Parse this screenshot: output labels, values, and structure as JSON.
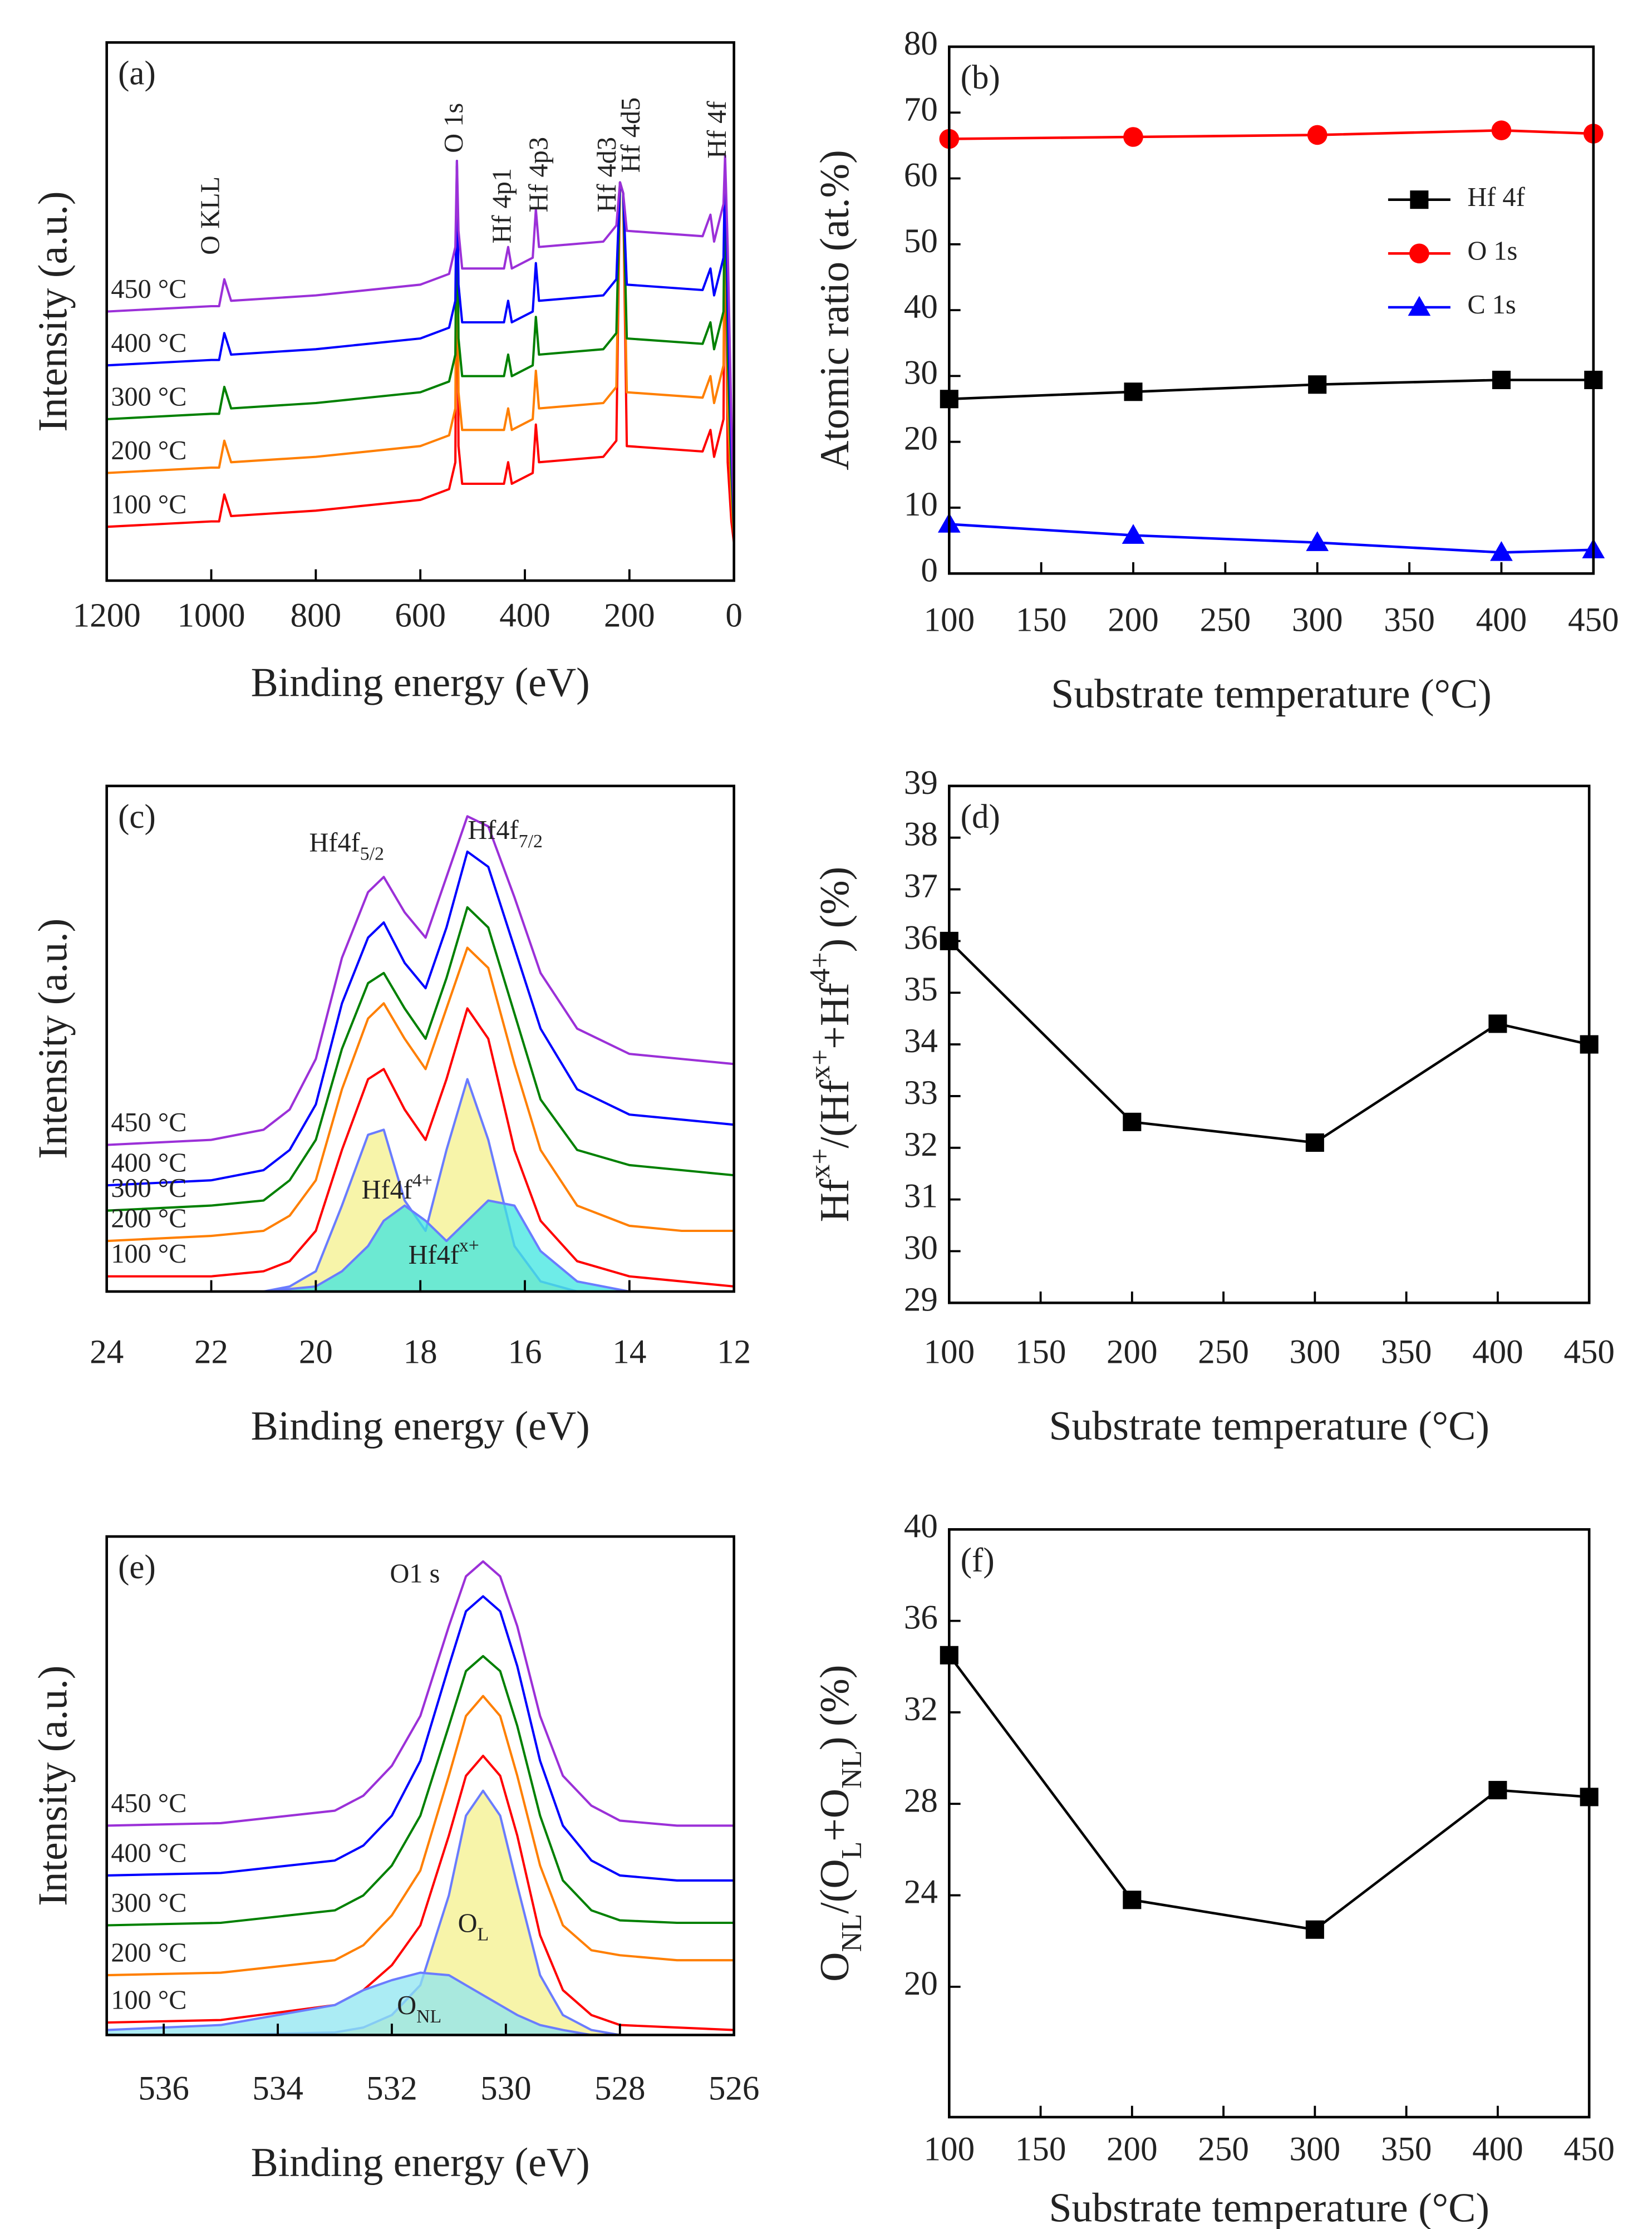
{
  "chart_data": [
    {
      "type": "line",
      "title": "(a)",
      "xlabel": "Binding energy (eV)",
      "ylabel": "Intensity (a.u.)",
      "x": [
        1200,
        1000,
        985,
        975,
        962,
        800,
        600,
        545,
        533,
        530,
        527,
        520,
        440,
        432,
        425,
        385,
        379,
        373,
        250,
        225,
        218,
        212,
        205,
        60,
        45,
        38,
        20,
        17,
        12,
        5,
        0
      ],
      "xlim": [
        1200,
        0
      ],
      "xticks": [
        1200,
        1000,
        800,
        600,
        400,
        200,
        0
      ],
      "ylim": [
        0,
        100
      ],
      "series": [
        {
          "name": "100 °C",
          "color": "#ff0000",
          "values": [
            10,
            11,
            11,
            16,
            12,
            13,
            15,
            17,
            22,
            77,
            25,
            18,
            18,
            22,
            18,
            20,
            29,
            22,
            23,
            26,
            74,
            72,
            25,
            24,
            28,
            23,
            30,
            76,
            22,
            11,
            7
          ]
        },
        {
          "name": "200 °C",
          "color": "#ff7f00",
          "values": [
            20,
            21,
            21,
            26,
            22,
            23,
            25,
            27,
            32,
            77,
            35,
            28,
            28,
            32,
            28,
            30,
            39,
            32,
            33,
            36,
            74,
            72,
            35,
            34,
            38,
            33,
            40,
            77,
            32,
            16,
            8
          ]
        },
        {
          "name": "300 °C",
          "color": "#008000",
          "values": [
            30,
            31,
            31,
            36,
            32,
            33,
            35,
            37,
            42,
            77,
            45,
            38,
            38,
            42,
            38,
            40,
            49,
            42,
            43,
            46,
            74,
            72,
            45,
            44,
            48,
            43,
            50,
            78,
            42,
            20,
            9
          ]
        },
        {
          "name": "400 °C",
          "color": "#0000ff",
          "values": [
            40,
            41,
            41,
            46,
            42,
            43,
            45,
            47,
            52,
            78,
            55,
            48,
            48,
            52,
            48,
            50,
            59,
            52,
            53,
            56,
            74,
            72,
            55,
            54,
            58,
            53,
            60,
            78,
            52,
            25,
            10
          ]
        },
        {
          "name": "450 °C",
          "color": "#9b30d8",
          "values": [
            50,
            51,
            51,
            56,
            52,
            53,
            55,
            57,
            62,
            78,
            65,
            58,
            58,
            62,
            58,
            60,
            69,
            62,
            63,
            66,
            74,
            72,
            65,
            64,
            68,
            63,
            70,
            79,
            62,
            30,
            11
          ]
        }
      ],
      "annotations": [
        {
          "parts": [
            "O KLL"
          ]
        },
        {
          "parts": [
            "O 1s"
          ]
        },
        {
          "parts": [
            "Hf 4p1"
          ]
        },
        {
          "parts": [
            "Hf 4p3"
          ]
        },
        {
          "parts": [
            "Hf 4d3"
          ]
        },
        {
          "parts": [
            "Hf 4d5"
          ]
        },
        {
          "parts": [
            "Hf 4f"
          ]
        }
      ]
    },
    {
      "type": "line",
      "title": "(b)",
      "xlabel": "Substrate temperature (°C)",
      "ylabel": "Atomic ratio (at.%)",
      "x": [
        100,
        200,
        300,
        400,
        450
      ],
      "xlim": [
        100,
        450
      ],
      "xticks": [
        100,
        150,
        200,
        250,
        300,
        350,
        400,
        450
      ],
      "ylim": [
        0,
        80
      ],
      "yticks": [
        0,
        10,
        20,
        30,
        40,
        50,
        60,
        70,
        80
      ],
      "legend": "upper right",
      "series": [
        {
          "name": "Hf 4f",
          "color": "#000000",
          "marker": "square",
          "values": [
            26.5,
            27.6,
            28.7,
            29.4,
            29.4
          ]
        },
        {
          "name": "O 1s",
          "color": "#ff0000",
          "marker": "circle",
          "values": [
            66,
            66.3,
            66.6,
            67.3,
            66.8
          ]
        },
        {
          "name": "C 1s",
          "color": "#0000ff",
          "marker": "triangle",
          "values": [
            7.5,
            5.8,
            4.7,
            3.2,
            3.6
          ]
        }
      ]
    },
    {
      "type": "line",
      "title": "(c)",
      "xlabel": "Binding energy (eV)",
      "ylabel": "Intensity (a.u.)",
      "x": [
        24,
        22,
        21,
        20.5,
        20,
        19.5,
        19,
        18.7,
        18.3,
        17.9,
        17.5,
        17.1,
        16.7,
        16.2,
        15.7,
        15,
        14,
        13,
        12
      ],
      "xlim": [
        24,
        12
      ],
      "xticks": [
        24,
        22,
        20,
        18,
        16,
        14,
        12
      ],
      "ylim": [
        0,
        100
      ],
      "series": [
        {
          "name": "100 °C",
          "color": "#ff0000",
          "values": [
            3,
            3,
            4,
            6,
            12,
            28,
            42,
            44,
            36,
            30,
            42,
            56,
            50,
            28,
            14,
            6,
            3,
            2,
            1
          ]
        },
        {
          "name": "200 °C",
          "color": "#ff7f00",
          "values": [
            10,
            11,
            12,
            15,
            22,
            40,
            54,
            57,
            50,
            44,
            56,
            68,
            64,
            45,
            28,
            17,
            13,
            12,
            12
          ]
        },
        {
          "name": "300 °C",
          "color": "#008000",
          "values": [
            16,
            17,
            18,
            22,
            30,
            48,
            61,
            63,
            56,
            50,
            62,
            76,
            72,
            55,
            38,
            28,
            25,
            24,
            23
          ]
        },
        {
          "name": "400 °C",
          "color": "#0000ff",
          "values": [
            21,
            22,
            24,
            28,
            37,
            57,
            70,
            73,
            65,
            60,
            72,
            87,
            84,
            68,
            52,
            40,
            35,
            34,
            33
          ]
        },
        {
          "name": "450 °C",
          "color": "#9b30d8",
          "values": [
            29,
            30,
            32,
            36,
            46,
            66,
            79,
            82,
            75,
            70,
            82,
            94,
            92,
            78,
            63,
            52,
            47,
            46,
            45
          ]
        },
        {
          "color": "#6a7cff",
          "fill": "#f4f08c",
          "values": [
            0,
            0,
            0,
            1,
            4,
            17,
            31,
            32,
            18,
            12,
            28,
            42,
            30,
            9,
            2,
            0,
            0,
            0,
            0
          ]
        },
        {
          "color": "#6a7cff",
          "fill": "#3ee6e0",
          "values": [
            0,
            0,
            0,
            0.5,
            1,
            4,
            9,
            14,
            17,
            14,
            10,
            14,
            18,
            17,
            8,
            2,
            0,
            0,
            0
          ]
        }
      ],
      "annotations": [
        {
          "parts": [
            "Hf4f",
            "5/2"
          ],
          "script": "sub"
        },
        {
          "parts": [
            "Hf4f",
            "7/2"
          ],
          "script": "sub"
        },
        {
          "parts": [
            "Hf4f",
            "4+"
          ],
          "script": "sup"
        },
        {
          "parts": [
            "Hf4f",
            "x+"
          ],
          "script": "sup"
        }
      ]
    },
    {
      "type": "line",
      "title": "(d)",
      "xlabel": "Substrate temperature (°C)",
      "ylabel": {
        "parts": [
          "Hf",
          "x+",
          "/(Hf",
          "x+",
          "+Hf",
          "4+",
          ") (%)"
        ],
        "script": "sup"
      },
      "x": [
        100,
        200,
        300,
        400,
        450
      ],
      "xlim": [
        100,
        450
      ],
      "xticks": [
        100,
        150,
        200,
        250,
        300,
        350,
        400,
        450
      ],
      "ylim": [
        29,
        39
      ],
      "yticks": [
        29,
        30,
        31,
        32,
        33,
        34,
        35,
        36,
        37,
        38,
        39
      ],
      "series": [
        {
          "color": "#000000",
          "marker": "square",
          "values": [
            36,
            32.5,
            32.1,
            34.4,
            34.0
          ]
        }
      ]
    },
    {
      "type": "line",
      "title": "(e)",
      "xlabel": "Binding energy (eV)",
      "ylabel": "Intensity (a.u.)",
      "x": [
        537,
        535,
        533,
        532.5,
        532,
        531.5,
        531,
        530.7,
        530.4,
        530.1,
        529.8,
        529.4,
        529,
        528.5,
        528,
        527,
        526
      ],
      "xlim": [
        537,
        526
      ],
      "xticks": [
        536,
        534,
        532,
        530,
        528,
        526
      ],
      "ylim": [
        0,
        100
      ],
      "series": [
        {
          "name": "100 °C",
          "color": "#ff0000",
          "values": [
            2.5,
            3,
            6,
            9,
            14,
            22,
            40,
            52,
            56,
            52,
            40,
            20,
            9,
            4,
            2,
            1.5,
            1
          ]
        },
        {
          "name": "200 °C",
          "color": "#ff7f00",
          "values": [
            12,
            12.5,
            15,
            18,
            24,
            33,
            52,
            64,
            68,
            64,
            52,
            34,
            22,
            17,
            16,
            15,
            15
          ]
        },
        {
          "name": "300 °C",
          "color": "#008000",
          "values": [
            22,
            22.5,
            25,
            28,
            34,
            44,
            62,
            73,
            76,
            73,
            62,
            44,
            31,
            25,
            23,
            22.5,
            22.5
          ]
        },
        {
          "name": "400 °C",
          "color": "#0000ff",
          "values": [
            32,
            32.5,
            35,
            38,
            44,
            55,
            74,
            85,
            88,
            85,
            74,
            55,
            42,
            35,
            32,
            31,
            31
          ]
        },
        {
          "name": "450 °C",
          "color": "#9b30d8",
          "values": [
            42,
            42.5,
            45,
            48,
            54,
            64,
            82,
            92,
            95,
            92,
            82,
            64,
            52,
            46,
            43,
            42,
            42
          ]
        },
        {
          "color": "#6a7cff",
          "fill": "#f4f08c",
          "values": [
            0,
            0,
            0.5,
            1.5,
            4,
            10,
            28,
            44,
            49,
            44,
            30,
            12,
            4,
            1,
            0,
            0,
            0
          ]
        },
        {
          "color": "#6a7cff",
          "fill": "#8fe6f0",
          "values": [
            1,
            2,
            6,
            9,
            11,
            12.5,
            12,
            10,
            8,
            6,
            4,
            2,
            1,
            0,
            0,
            0,
            0
          ]
        }
      ],
      "annotations": [
        {
          "parts": [
            "O1 s"
          ]
        },
        {
          "parts": [
            "O",
            "L"
          ],
          "script": "sub"
        },
        {
          "parts": [
            "O",
            "NL"
          ],
          "script": "sub"
        }
      ]
    },
    {
      "type": "line",
      "title": "(f)",
      "xlabel": "Substrate temperature (°C)",
      "ylabel": {
        "parts": [
          "O",
          "NL",
          "/(O",
          "L",
          "+O",
          "NL",
          ") (%)"
        ],
        "script": "sub"
      },
      "x": [
        100,
        200,
        300,
        400,
        450
      ],
      "xlim": [
        100,
        450
      ],
      "xticks": [
        100,
        150,
        200,
        250,
        300,
        350,
        400,
        450
      ],
      "ylim": [
        14.3,
        40
      ],
      "yticks": [
        20,
        24,
        28,
        32,
        36,
        40
      ],
      "series": [
        {
          "color": "#000000",
          "marker": "square",
          "values": [
            34.5,
            23.8,
            22.5,
            28.6,
            28.3
          ]
        }
      ]
    }
  ]
}
